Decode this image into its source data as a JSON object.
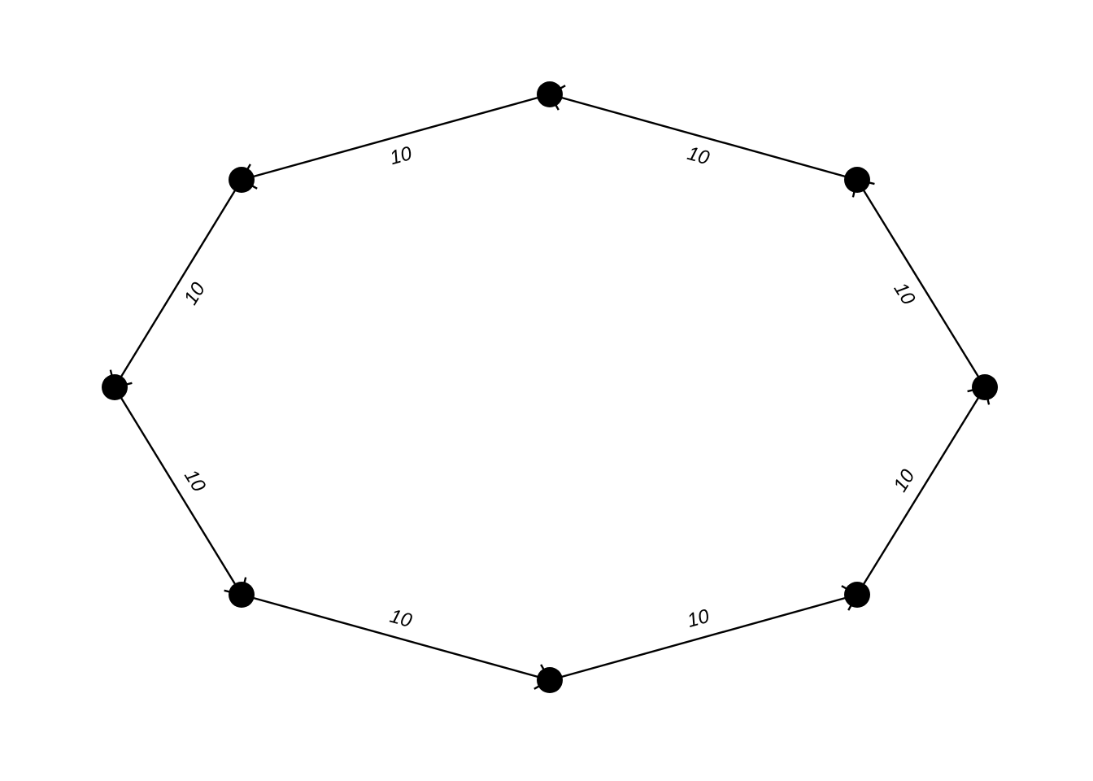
{
  "diagram": {
    "type": "directed-cycle-graph",
    "node_count": 8,
    "colors": {
      "edge": "#000000",
      "node": "#000000",
      "label": "#000000",
      "background": "#ffffff"
    },
    "edges": [
      {
        "from": "top",
        "to": "upper-left",
        "label": "10"
      },
      {
        "from": "upper-left",
        "to": "left",
        "label": "10"
      },
      {
        "from": "left",
        "to": "lower-left",
        "label": "10"
      },
      {
        "from": "lower-left",
        "to": "bottom",
        "label": "10"
      },
      {
        "from": "bottom",
        "to": "lower-right",
        "label": "10"
      },
      {
        "from": "lower-right",
        "to": "right",
        "label": "10"
      },
      {
        "from": "right",
        "to": "upper-right",
        "label": "10"
      },
      {
        "from": "upper-right",
        "to": "top",
        "label": "10"
      }
    ]
  }
}
